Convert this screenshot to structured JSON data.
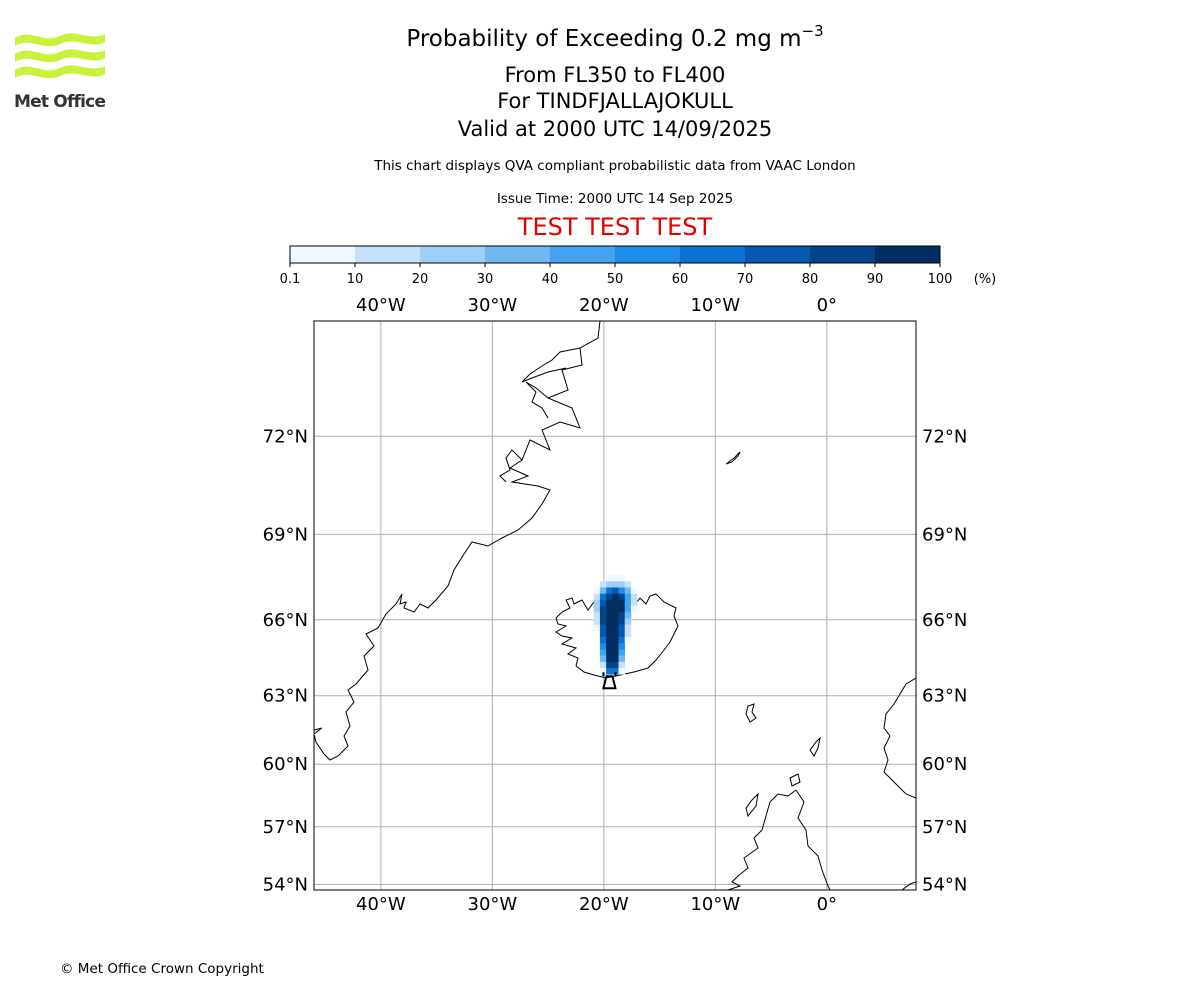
{
  "header": {
    "title_prefix": "Probability of Exceeding 0.2 mg m",
    "title_exponent": "−3",
    "level_range": "From FL350 to FL400",
    "volcano": "For TINDFJALLAJOKULL",
    "valid_time": "Valid at 2000 UTC 14/09/2025",
    "description": "This chart displays QVA compliant probabilistic data from VAAC London",
    "issue_time": "Issue Time: 2000 UTC 14 Sep 2025",
    "test_banner": "TEST TEST TEST"
  },
  "logo": {
    "text": "Met Office",
    "color": "#c8f23c",
    "icon": "met-office-wave-logo"
  },
  "colorbar": {
    "bounds": [
      "0.1",
      "10",
      "20",
      "30",
      "40",
      "50",
      "60",
      "70",
      "80",
      "90",
      "100"
    ],
    "colors": [
      "#f0f8ff",
      "#c6e2fa",
      "#9ecff6",
      "#6fb9f3",
      "#44a3f0",
      "#1f8ceb",
      "#0b72d4",
      "#0559b0",
      "#03448a",
      "#022e62"
    ],
    "unit": "(%)"
  },
  "map": {
    "lon_range": [
      -46,
      8
    ],
    "lat_range": [
      53.7,
      75
    ],
    "lon_ticks": [
      {
        "value": -40,
        "label": "40°W"
      },
      {
        "value": -30,
        "label": "30°W"
      },
      {
        "value": -20,
        "label": "20°W"
      },
      {
        "value": -10,
        "label": "10°W"
      },
      {
        "value": 0,
        "label": "0°"
      }
    ],
    "lat_ticks": [
      {
        "value": 72,
        "label": "72°N"
      },
      {
        "value": 69,
        "label": "69°N"
      },
      {
        "value": 66,
        "label": "66°N"
      },
      {
        "value": 63,
        "label": "63°N"
      },
      {
        "value": 60,
        "label": "60°N"
      },
      {
        "value": 57,
        "label": "57°N"
      },
      {
        "value": 54,
        "label": "54°N"
      }
    ],
    "gridlines": true,
    "volcano_location": {
      "lon": -19.5,
      "lat": 63.8
    },
    "plume_levels_percent": [
      [
        0,
        0,
        0,
        5,
        5,
        5,
        0,
        0,
        0
      ],
      [
        0,
        0,
        15,
        25,
        25,
        25,
        15,
        0,
        0
      ],
      [
        0,
        5,
        35,
        60,
        70,
        50,
        30,
        5,
        0
      ],
      [
        0,
        15,
        60,
        85,
        95,
        80,
        40,
        10,
        0
      ],
      [
        0,
        20,
        75,
        95,
        98,
        90,
        45,
        10,
        0
      ],
      [
        0,
        20,
        80,
        95,
        98,
        90,
        40,
        5,
        0
      ],
      [
        0,
        15,
        80,
        95,
        95,
        85,
        35,
        0,
        0
      ],
      [
        0,
        10,
        80,
        95,
        95,
        80,
        25,
        0,
        0
      ],
      [
        0,
        5,
        75,
        95,
        95,
        75,
        15,
        0,
        0
      ],
      [
        0,
        0,
        70,
        95,
        95,
        70,
        10,
        0,
        0
      ],
      [
        0,
        0,
        65,
        95,
        95,
        65,
        5,
        0,
        0
      ],
      [
        0,
        0,
        55,
        95,
        95,
        55,
        0,
        0,
        0
      ],
      [
        0,
        0,
        45,
        95,
        95,
        45,
        0,
        0,
        0
      ],
      [
        0,
        0,
        30,
        90,
        90,
        30,
        0,
        0,
        0
      ],
      [
        0,
        0,
        15,
        80,
        80,
        15,
        0,
        0,
        0
      ],
      [
        0,
        0,
        5,
        60,
        60,
        5,
        0,
        0,
        0
      ]
    ]
  },
  "footer": {
    "copyright": "© Met Office Crown Copyright"
  }
}
